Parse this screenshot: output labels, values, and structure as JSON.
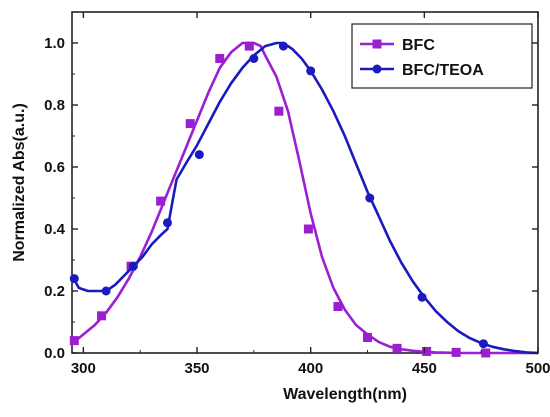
{
  "chart_data": {
    "type": "line",
    "xlabel": "Wavelength(nm)",
    "ylabel": "Normalized Abs(a.u.)",
    "xlim": [
      295,
      500
    ],
    "ylim": [
      0,
      1.1
    ],
    "x_ticks": [
      "300",
      "350",
      "400",
      "450",
      "500"
    ],
    "y_ticks": [
      "0.0",
      "0.2",
      "0.4",
      "0.6",
      "0.8",
      "1.0"
    ],
    "grid": false,
    "legend_position": "top-right",
    "series": [
      {
        "name": "BFC",
        "color": "#9b1fd0",
        "marker": "square",
        "curve_x": [
          295,
          300,
          305,
          310,
          315,
          320,
          325,
          330,
          335,
          340,
          345,
          350,
          355,
          360,
          365,
          370,
          372,
          375,
          378,
          380,
          385,
          390,
          395,
          400,
          405,
          410,
          415,
          420,
          425,
          430,
          435,
          440,
          445,
          450,
          455,
          460,
          465,
          470,
          475,
          480,
          485,
          490,
          500
        ],
        "curve_y": [
          0.03,
          0.06,
          0.09,
          0.13,
          0.18,
          0.24,
          0.31,
          0.39,
          0.48,
          0.57,
          0.66,
          0.75,
          0.84,
          0.92,
          0.97,
          1.0,
          1.0,
          1.0,
          0.99,
          0.96,
          0.89,
          0.78,
          0.62,
          0.45,
          0.31,
          0.21,
          0.14,
          0.09,
          0.06,
          0.035,
          0.02,
          0.012,
          0.007,
          0.004,
          0.002,
          0.001,
          0.0,
          0.0,
          0.0,
          0.0,
          0.0,
          0.0,
          0.0
        ],
        "marker_x": [
          296,
          308,
          321,
          334,
          347,
          360,
          373,
          386,
          399,
          412,
          425,
          438,
          451,
          464,
          477
        ],
        "marker_y": [
          0.04,
          0.12,
          0.28,
          0.49,
          0.74,
          0.95,
          0.99,
          0.78,
          0.4,
          0.15,
          0.05,
          0.015,
          0.005,
          0.002,
          0.0
        ]
      },
      {
        "name": "BFC/TEOA",
        "color": "#1a1abf",
        "marker": "circle",
        "curve_x": [
          295,
          298,
          302,
          306,
          310,
          314,
          318,
          322,
          326,
          330,
          334,
          337,
          339,
          341,
          345,
          350,
          355,
          360,
          365,
          370,
          375,
          380,
          385,
          388,
          392,
          396,
          400,
          405,
          410,
          415,
          420,
          425,
          430,
          435,
          440,
          445,
          450,
          455,
          460,
          465,
          470,
          475,
          480,
          485,
          490,
          495,
          500
        ],
        "curve_y": [
          0.25,
          0.21,
          0.2,
          0.2,
          0.2,
          0.22,
          0.25,
          0.28,
          0.31,
          0.35,
          0.38,
          0.4,
          0.48,
          0.56,
          0.61,
          0.67,
          0.74,
          0.81,
          0.87,
          0.92,
          0.96,
          0.99,
          1.0,
          1.0,
          0.98,
          0.95,
          0.91,
          0.85,
          0.78,
          0.7,
          0.61,
          0.52,
          0.44,
          0.36,
          0.29,
          0.23,
          0.18,
          0.135,
          0.1,
          0.07,
          0.048,
          0.032,
          0.02,
          0.012,
          0.006,
          0.002,
          0.0
        ],
        "marker_x": [
          296,
          310,
          322,
          337,
          351,
          375,
          388,
          400,
          426,
          449,
          476
        ],
        "marker_y": [
          0.24,
          0.2,
          0.28,
          0.42,
          0.64,
          0.95,
          0.99,
          0.91,
          0.5,
          0.18,
          0.03
        ]
      }
    ]
  }
}
